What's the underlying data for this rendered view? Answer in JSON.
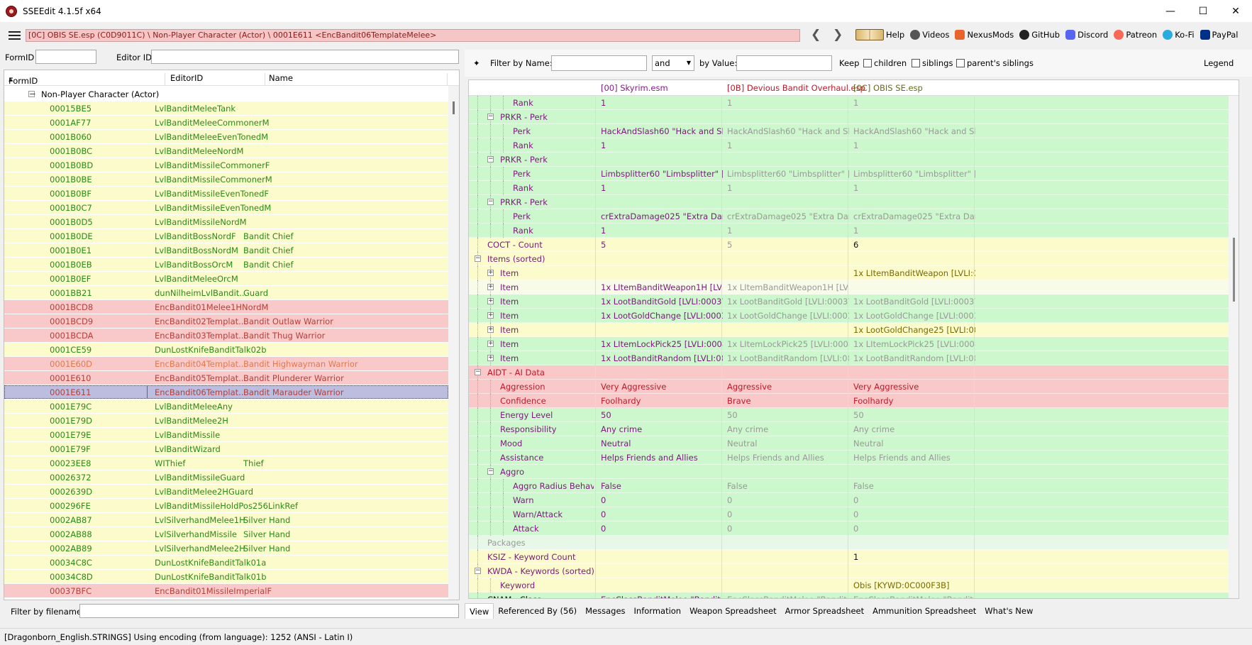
{
  "window": {
    "title": "SSEEdit 4.1.5f x64"
  },
  "pathbar": {
    "path": "[0C] OBIS SE.esp (C0D9011C) \\ Non-Player Character (Actor) \\ 0001E611 <EncBandit06TemplateMelee>",
    "links": [
      "Help",
      "Videos",
      "NexusMods",
      "GitHub",
      "Discord",
      "Patreon",
      "Ko-Fi",
      "PayPal"
    ]
  },
  "left": {
    "formid_label": "FormID",
    "editorid_label": "Editor ID",
    "columns": [
      "FormID",
      "EditorID",
      "Name"
    ],
    "group": "Non-Player Character (Actor)",
    "rows": [
      {
        "id": "00015BE5",
        "editor": "LvlBanditMeleeTank",
        "name": "",
        "st": "y"
      },
      {
        "id": "0001AF77",
        "editor": "LvlBanditMeleeCommonerM",
        "name": "",
        "st": "y"
      },
      {
        "id": "0001B060",
        "editor": "LvlBanditMeleeEvenTonedM",
        "name": "",
        "st": "y"
      },
      {
        "id": "0001B0BC",
        "editor": "LvlBanditMeleeNordM",
        "name": "",
        "st": "y"
      },
      {
        "id": "0001B0BD",
        "editor": "LvlBanditMissileCommonerF",
        "name": "",
        "st": "y"
      },
      {
        "id": "0001B0BE",
        "editor": "LvlBanditMissileCommonerM",
        "name": "",
        "st": "y"
      },
      {
        "id": "0001B0BF",
        "editor": "LvlBanditMissileEvenTonedF",
        "name": "",
        "st": "y"
      },
      {
        "id": "0001B0C7",
        "editor": "LvlBanditMissileEvenTonedM",
        "name": "",
        "st": "y"
      },
      {
        "id": "0001B0D5",
        "editor": "LvlBanditMissileNordM",
        "name": "",
        "st": "y"
      },
      {
        "id": "0001B0DE",
        "editor": "LvlBanditBossNordF",
        "name": "Bandit Chief",
        "st": "y"
      },
      {
        "id": "0001B0E1",
        "editor": "LvlBanditBossNordM",
        "name": "Bandit Chief",
        "st": "y"
      },
      {
        "id": "0001B0EB",
        "editor": "LvlBanditBossOrcM",
        "name": "Bandit Chief",
        "st": "y"
      },
      {
        "id": "0001B0EF",
        "editor": "LvlBanditMeleeOrcM",
        "name": "",
        "st": "y"
      },
      {
        "id": "0001BB21",
        "editor": "dunNilheimLvlBandit...",
        "name": "Guard",
        "st": "y"
      },
      {
        "id": "0001BCD8",
        "editor": "EncBandit01Melee1HNordM",
        "name": "",
        "st": "r"
      },
      {
        "id": "0001BCD9",
        "editor": "EncBandit02Templat...",
        "name": "Bandit Outlaw Warrior",
        "st": "r"
      },
      {
        "id": "0001BCDA",
        "editor": "EncBandit03Templat...",
        "name": "Bandit Thug Warrior",
        "st": "r"
      },
      {
        "id": "0001CE59",
        "editor": "DunLostKnifeBanditTalk02b",
        "name": "",
        "st": "y"
      },
      {
        "id": "0001E60D",
        "editor": "EncBandit04Templat...",
        "name": "Bandit Highwayman Warrior",
        "st": "rl"
      },
      {
        "id": "0001E610",
        "editor": "EncBandit05Templat...",
        "name": "Bandit Plunderer Warrior",
        "st": "r"
      },
      {
        "id": "0001E611",
        "editor": "EncBandit06Templat...",
        "name": "Bandit Marauder Warrior",
        "st": "s"
      },
      {
        "id": "0001E79C",
        "editor": "LvlBanditMeleeAny",
        "name": "",
        "st": "y"
      },
      {
        "id": "0001E79D",
        "editor": "LvlBanditMelee2H",
        "name": "",
        "st": "y"
      },
      {
        "id": "0001E79E",
        "editor": "LvlBanditMissile",
        "name": "",
        "st": "y"
      },
      {
        "id": "0001E79F",
        "editor": "LvlBanditWizard",
        "name": "",
        "st": "y"
      },
      {
        "id": "00023EE8",
        "editor": "WIThief",
        "name": "Thief",
        "st": "y"
      },
      {
        "id": "00026372",
        "editor": "LvlBanditMissileGuard",
        "name": "",
        "st": "y"
      },
      {
        "id": "0002639D",
        "editor": "LvlBanditMelee2HGuard",
        "name": "",
        "st": "y"
      },
      {
        "id": "000296FE",
        "editor": "LvlBanditMissileHoldPos256LinkRef",
        "name": "",
        "st": "y"
      },
      {
        "id": "0002AB87",
        "editor": "LvlSilverhandMelee1H",
        "name": "Silver Hand",
        "st": "y"
      },
      {
        "id": "0002AB88",
        "editor": "LvlSilverhandMissile",
        "name": "Silver Hand",
        "st": "y"
      },
      {
        "id": "0002AB89",
        "editor": "LvlSilverhandMelee2H",
        "name": "Silver Hand",
        "st": "y"
      },
      {
        "id": "00034C8C",
        "editor": "DunLostKnifeBanditTalk01a",
        "name": "",
        "st": "y"
      },
      {
        "id": "00034C8D",
        "editor": "DunLostKnifeBanditTalk01b",
        "name": "",
        "st": "y"
      },
      {
        "id": "00037BFC",
        "editor": "EncBandit01MissileImperialF",
        "name": "",
        "st": "r"
      }
    ],
    "filter_label": "Filter by filename:"
  },
  "right": {
    "filter": {
      "name_label": "Filter by Name:",
      "op": "and",
      "value_label": "by Value:",
      "keep": "Keep",
      "children": "children",
      "siblings": "siblings",
      "parents": "parent's siblings",
      "legend": "Legend"
    },
    "columns": [
      "[00] Skyrim.esm",
      "[0B] Devious Bandit Overhaul.esp",
      "[0C] OBIS SE.esp"
    ],
    "rows": [
      {
        "lv": 3,
        "t": "",
        "label": "Rank",
        "a": "1",
        "b": "1",
        "c": "1",
        "bg": "g"
      },
      {
        "lv": 2,
        "t": "-",
        "label": "PRKR - Perk",
        "a": "",
        "b": "",
        "c": "",
        "bg": "g"
      },
      {
        "lv": 3,
        "t": "",
        "label": "Perk",
        "a": "HackAndSlash60 \"Hack and Slas...",
        "b": "HackAndSlash60 \"Hack and Slas...",
        "c": "HackAndSlash60 \"Hack and Slas...",
        "bg": "g"
      },
      {
        "lv": 3,
        "t": "",
        "label": "Rank",
        "a": "1",
        "b": "1",
        "c": "1",
        "bg": "g"
      },
      {
        "lv": 2,
        "t": "-",
        "label": "PRKR - Perk",
        "a": "",
        "b": "",
        "c": "",
        "bg": "g"
      },
      {
        "lv": 3,
        "t": "",
        "label": "Perk",
        "a": "Limbsplitter60 \"Limbsplitter\" [PE...",
        "b": "Limbsplitter60 \"Limbsplitter\" [PE...",
        "c": "Limbsplitter60 \"Limbsplitter\" [PE...",
        "bg": "g"
      },
      {
        "lv": 3,
        "t": "",
        "label": "Rank",
        "a": "1",
        "b": "1",
        "c": "1",
        "bg": "g"
      },
      {
        "lv": 2,
        "t": "-",
        "label": "PRKR - Perk",
        "a": "",
        "b": "",
        "c": "",
        "bg": "g"
      },
      {
        "lv": 3,
        "t": "",
        "label": "Perk",
        "a": "crExtraDamage025 \"Extra Damag...",
        "b": "crExtraDamage025 \"Extra Damag...",
        "c": "crExtraDamage025 \"Extra Damag...",
        "bg": "g"
      },
      {
        "lv": 3,
        "t": "",
        "label": "Rank",
        "a": "1",
        "b": "1",
        "c": "1",
        "bg": "g"
      },
      {
        "lv": 1,
        "t": "",
        "label": "COCT - Count",
        "a": "5",
        "b": "5",
        "c": "6",
        "bg": "y",
        "cs": "b"
      },
      {
        "lv": 1,
        "t": "-",
        "label": "Items (sorted)",
        "a": "",
        "b": "",
        "c": "",
        "bg": "y"
      },
      {
        "lv": 2,
        "t": "+",
        "label": "Item",
        "a": "",
        "b": "",
        "c": "1x LItemBanditWeapon [LVLI:000...",
        "bg": "y"
      },
      {
        "lv": 2,
        "t": "+",
        "label": "Item",
        "a": "1x LItemBanditWeapon1H [LVLI:...",
        "b": "1x LItemBanditWeapon1H [LVLI:...",
        "c": "",
        "bg": "y"
      },
      {
        "lv": 2,
        "t": "+",
        "label": "Item",
        "a": "1x LootBanditGold [LVLI:00037C2...",
        "b": "1x LootBanditGold [LVLI:00037C2...",
        "c": "1x LootBanditGold [LVLI:00037C2...",
        "bg": "g"
      },
      {
        "lv": 2,
        "t": "+",
        "label": "Item",
        "a": "1x LootGoldChange [LVLI:00037...",
        "b": "1x LootGoldChange [LVLI:00037...",
        "c": "1x LootGoldChange [LVLI:00037...",
        "bg": "g"
      },
      {
        "lv": 2,
        "t": "+",
        "label": "Item",
        "a": "",
        "b": "",
        "c": "1x LootGoldChange25 [LVLI:0004...",
        "bg": "y"
      },
      {
        "lv": 2,
        "t": "+",
        "label": "Item",
        "a": "1x LItemLockPick25 [LVLI:0008FF...",
        "b": "1x LItemLockPick25 [LVLI:0008FF...",
        "c": "1x LItemLockPick25 [LVLI:0008FF...",
        "bg": "g"
      },
      {
        "lv": 2,
        "t": "+",
        "label": "Item",
        "a": "1x LootBanditRandom [LVLI:0010...",
        "b": "1x LootBanditRandom [LVLI:0010...",
        "c": "1x LootBanditRandom [LVLI:0010...",
        "bg": "g"
      },
      {
        "lv": 1,
        "t": "-",
        "label": "AIDT - AI Data",
        "a": "",
        "b": "",
        "c": "",
        "bg": "r"
      },
      {
        "lv": 2,
        "t": "",
        "label": "Aggression",
        "a": "Very Aggressive",
        "b": "Aggressive",
        "c": "Very Aggressive",
        "bg": "r"
      },
      {
        "lv": 2,
        "t": "",
        "label": "Confidence",
        "a": "Foolhardy",
        "b": "Brave",
        "c": "Foolhardy",
        "bg": "r"
      },
      {
        "lv": 2,
        "t": "",
        "label": "Energy Level",
        "a": "50",
        "b": "50",
        "c": "50",
        "bg": "g"
      },
      {
        "lv": 2,
        "t": "",
        "label": "Responsibility",
        "a": "Any crime",
        "b": "Any crime",
        "c": "Any crime",
        "bg": "g"
      },
      {
        "lv": 2,
        "t": "",
        "label": "Mood",
        "a": "Neutral",
        "b": "Neutral",
        "c": "Neutral",
        "bg": "g"
      },
      {
        "lv": 2,
        "t": "",
        "label": "Assistance",
        "a": "Helps Friends and Allies",
        "b": "Helps Friends and Allies",
        "c": "Helps Friends and Allies",
        "bg": "g"
      },
      {
        "lv": 2,
        "t": "-",
        "label": "Aggro",
        "a": "",
        "b": "",
        "c": "",
        "bg": "g"
      },
      {
        "lv": 3,
        "t": "",
        "label": "Aggro Radius Behavior",
        "a": "False",
        "b": "False",
        "c": "False",
        "bg": "g"
      },
      {
        "lv": 3,
        "t": "",
        "label": "Warn",
        "a": "0",
        "b": "0",
        "c": "0",
        "bg": "g"
      },
      {
        "lv": 3,
        "t": "",
        "label": "Warn/Attack",
        "a": "0",
        "b": "0",
        "c": "0",
        "bg": "g"
      },
      {
        "lv": 3,
        "t": "",
        "label": "Attack",
        "a": "0",
        "b": "0",
        "c": "0",
        "bg": "g"
      },
      {
        "lv": 1,
        "t": "",
        "label": "Packages",
        "a": "",
        "b": "",
        "c": "",
        "bg": "lg",
        "ls": "gray"
      },
      {
        "lv": 1,
        "t": "",
        "label": "KSIZ - Keyword Count",
        "a": "",
        "b": "",
        "c": "1",
        "bg": "y",
        "cs": "b"
      },
      {
        "lv": 1,
        "t": "-",
        "label": "KWDA - Keywords (sorted)",
        "a": "",
        "b": "",
        "c": "",
        "bg": "y"
      },
      {
        "lv": 2,
        "t": "",
        "label": "Keyword",
        "a": "",
        "b": "",
        "c": "Obis [KYWD:0C000F3B]",
        "bg": "y"
      },
      {
        "lv": 1,
        "t": "",
        "label": "CNAM - Class",
        "a": "EncClassBanditMelee \"Bandit\" [...",
        "b": "EncClassBanditMelee \"Bandit\" [...",
        "c": "EncClassBanditMelee \"Bandit W...",
        "bg": "g"
      }
    ],
    "tabs": [
      "View",
      "Referenced By (56)",
      "Messages",
      "Information",
      "Weapon Spreadsheet",
      "Armor Spreadsheet",
      "Ammunition Spreadsheet",
      "What's New"
    ]
  },
  "status": "[Dragonborn_English.STRINGS] Using encoding (from language): 1252  (ANSI - Latin I)",
  "colors": {
    "green": "#cdf7cd",
    "yellow": "#fbfbcc",
    "red": "#f9c9c9",
    "selected": "#bdbde0",
    "light_green": "#e8f8e8"
  }
}
